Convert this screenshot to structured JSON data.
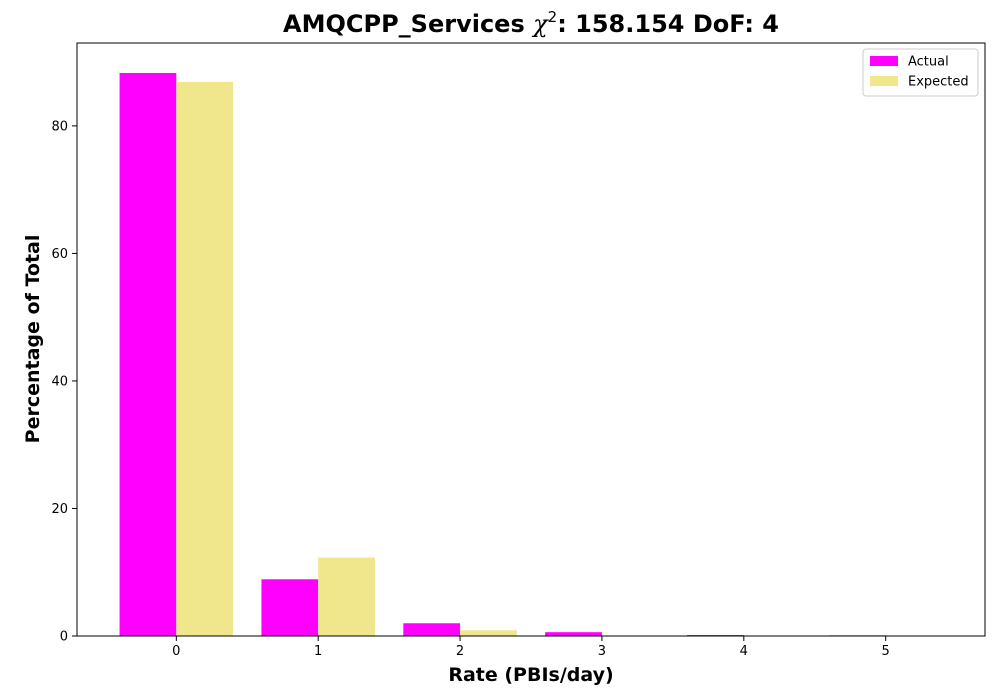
{
  "chart_data": {
    "type": "bar",
    "title_main": "AMQCPP_Services ",
    "title_chi": "χ",
    "title_sup": "2",
    "title_rest": ": 158.154 DoF: 4",
    "xlabel": "Rate (PBIs/day)",
    "ylabel": "Percentage of Total",
    "categories": [
      "0",
      "1",
      "2",
      "3",
      "4",
      "5"
    ],
    "x": [
      0,
      1,
      2,
      3,
      4,
      5
    ],
    "series": [
      {
        "name": "Actual",
        "color": "#ff00ff",
        "values": [
          88.3,
          8.9,
          2.0,
          0.6,
          0.15,
          0.1
        ]
      },
      {
        "name": "Expected",
        "color": "#f0e68c",
        "values": [
          86.9,
          12.3,
          0.9,
          0.05,
          0.0,
          0.0
        ]
      }
    ],
    "xlim": [
      -0.7,
      5.7
    ],
    "ylim": [
      0,
      93
    ],
    "yticks": [
      0,
      20,
      40,
      60,
      80
    ],
    "yticklabels": [
      "0",
      "20",
      "40",
      "60",
      "80"
    ],
    "grid": false,
    "legend": "top-right"
  }
}
